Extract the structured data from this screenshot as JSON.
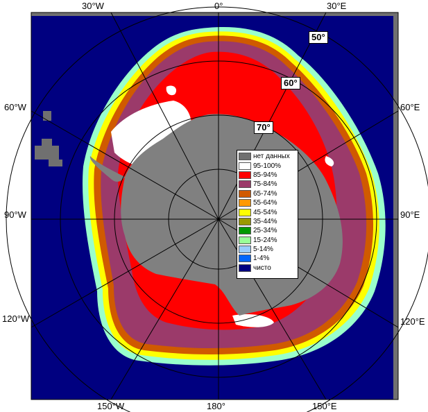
{
  "lon_labels": {
    "top": [
      "30°W",
      "0°",
      "30°E"
    ],
    "bottom": [
      "150°W",
      "180°",
      "150°E"
    ],
    "left": [
      "60°W",
      "90°W",
      "120°W"
    ],
    "right": [
      "60°E",
      "90°E",
      "120°E"
    ]
  },
  "lat_labels": [
    "50°",
    "60°",
    "70°"
  ],
  "legend": [
    {
      "label": "нет данных",
      "color": "#707070"
    },
    {
      "label": "95-100%",
      "color": "#ffffff"
    },
    {
      "label": "85-94%",
      "color": "#ff0000"
    },
    {
      "label": "75-84%",
      "color": "#9b3a6a"
    },
    {
      "label": "65-74%",
      "color": "#d05a00"
    },
    {
      "label": "55-64%",
      "color": "#ff9900"
    },
    {
      "label": "45-54%",
      "color": "#ffff00"
    },
    {
      "label": "35-44%",
      "color": "#999900"
    },
    {
      "label": "25-34%",
      "color": "#009900"
    },
    {
      "label": "15-24%",
      "color": "#99ff99"
    },
    {
      "label": "5-14%",
      "color": "#99ccff"
    },
    {
      "label": "1-4%",
      "color": "#0066ff"
    },
    {
      "label": "чисто",
      "color": "#000080"
    }
  ],
  "colors": {
    "ocean": "#000080",
    "land": "#808080",
    "frame": "#707070"
  }
}
